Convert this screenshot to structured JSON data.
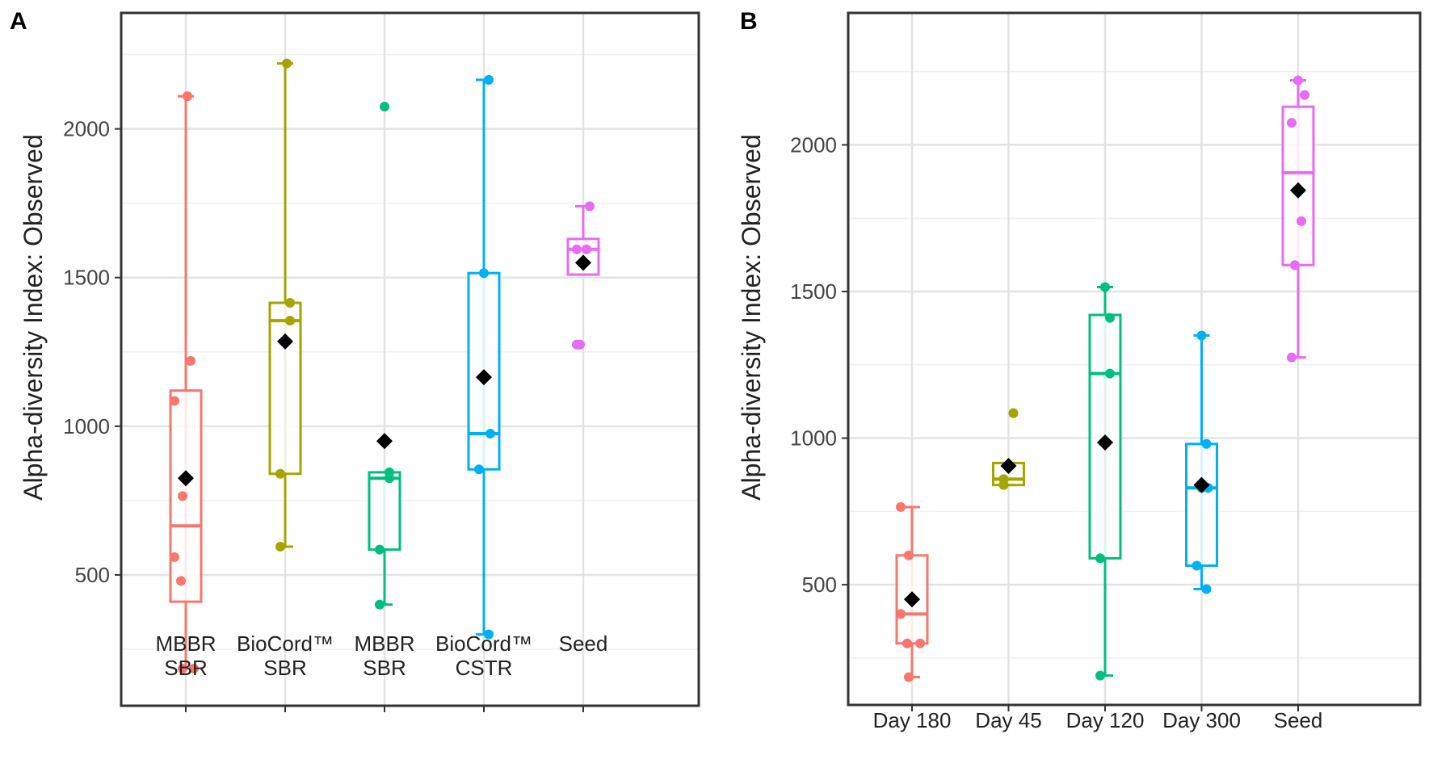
{
  "chart_data": [
    {
      "type": "box",
      "panel_label": "A",
      "ylabel": "Alpha-diversity Index: Observed",
      "ylim": [
        60,
        2390
      ],
      "yticks": [
        500,
        1000,
        1500,
        2000
      ],
      "grid": true,
      "colors": [
        "#F8766D",
        "#A3A500",
        "#00BF7D",
        "#00B0F6",
        "#E76BF3"
      ],
      "categories": [
        {
          "line1": "MBBR",
          "line2": "SBR"
        },
        {
          "line1": "BioCord™",
          "line2": "SBR"
        },
        {
          "line1": "MBBR",
          "line2": "SBR"
        },
        {
          "line1": "BioCord™",
          "line2": "CSTR"
        },
        {
          "line1": "Seed",
          "line2": ""
        }
      ],
      "boxes": [
        {
          "whisker_low": 185,
          "q1": 410,
          "median": 665,
          "q3": 1120,
          "whisker_high": 2110,
          "mean": 825,
          "points": [
            185,
            185,
            480,
            560,
            765,
            1085,
            1220,
            2110
          ]
        },
        {
          "whisker_low": 595,
          "q1": 840,
          "median": 1355,
          "q3": 1415,
          "whisker_high": 2220,
          "mean": 1285,
          "points": [
            595,
            840,
            1355,
            1415,
            2220
          ]
        },
        {
          "whisker_low": 400,
          "q1": 585,
          "median": 825,
          "q3": 845,
          "whisker_high": 845,
          "mean": 950,
          "points": [
            400,
            585,
            825,
            845,
            2075
          ]
        },
        {
          "whisker_low": 300,
          "q1": 855,
          "median": 975,
          "q3": 1515,
          "whisker_high": 2165,
          "mean": 1165,
          "points": [
            300,
            855,
            975,
            1515,
            2165
          ]
        },
        {
          "whisker_low": 1510,
          "q1": 1510,
          "median": 1595,
          "q3": 1630,
          "whisker_high": 1740,
          "mean": 1550,
          "points": [
            1275,
            1275,
            1595,
            1595,
            1740
          ]
        }
      ]
    },
    {
      "type": "box",
      "panel_label": "B",
      "ylabel": "Alpha-diversity Index: Observed",
      "ylim": [
        90,
        2450
      ],
      "yticks": [
        500,
        1000,
        1500,
        2000
      ],
      "grid": true,
      "colors": [
        "#F8766D",
        "#A3A500",
        "#00BF7D",
        "#00B0F6",
        "#E76BF3"
      ],
      "categories": [
        {
          "line1": "Day 180",
          "line2": ""
        },
        {
          "line1": "Day 45",
          "line2": ""
        },
        {
          "line1": "Day 120",
          "line2": ""
        },
        {
          "line1": "Day 300",
          "line2": ""
        },
        {
          "line1": "Seed",
          "line2": ""
        }
      ],
      "boxes": [
        {
          "whisker_low": 185,
          "q1": 300,
          "median": 400,
          "q3": 600,
          "whisker_high": 765,
          "mean": 450,
          "points": [
            185,
            300,
            300,
            400,
            600,
            765
          ]
        },
        {
          "whisker_low": 840,
          "q1": 840,
          "median": 860,
          "q3": 915,
          "whisker_high": 915,
          "mean": 905,
          "points": [
            840,
            860,
            1085,
            1085
          ]
        },
        {
          "whisker_low": 190,
          "q1": 590,
          "median": 1220,
          "q3": 1420,
          "whisker_high": 1515,
          "mean": 985,
          "points": [
            190,
            590,
            1220,
            1410,
            1515
          ]
        },
        {
          "whisker_low": 485,
          "q1": 565,
          "median": 830,
          "q3": 980,
          "whisker_high": 1350,
          "mean": 840,
          "points": [
            485,
            565,
            830,
            830,
            980,
            1350
          ]
        },
        {
          "whisker_low": 1275,
          "q1": 1590,
          "median": 1905,
          "q3": 2130,
          "whisker_high": 2220,
          "mean": 1845,
          "points": [
            1275,
            1590,
            1740,
            2075,
            2170,
            2220
          ]
        }
      ]
    }
  ]
}
